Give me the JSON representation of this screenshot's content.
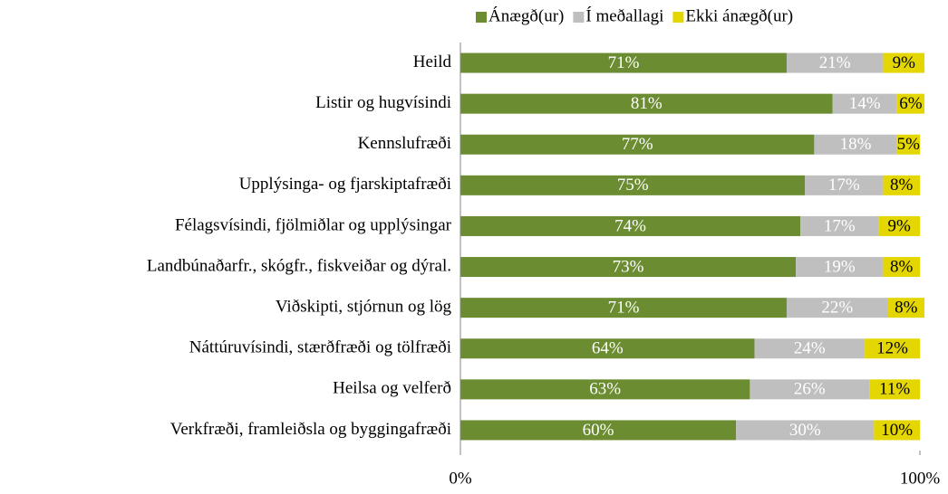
{
  "chart_data": {
    "type": "stacked-bar-horizontal",
    "categories": [
      "Heild",
      "Listir og hugvísindi",
      "Kennslufræði",
      "Upplýsinga- og fjarskiptafræði",
      "Félagsvísindi, fjölmiðlar og upplýsingar",
      "Landbúnaðarfr., skógfr., fiskveiðar og dýral.",
      "Viðskipti, stjórnun og lög",
      "Náttúruvísindi, stærðfræði og tölfræði",
      "Heilsa og velferð",
      "Verkfræði, framleiðsla og byggingafræði"
    ],
    "series": [
      {
        "name": "Ánægð(ur)",
        "color": "#6b8c31",
        "label_color": "#ffffff",
        "values": [
          71,
          81,
          77,
          75,
          74,
          73,
          71,
          64,
          63,
          60
        ],
        "value_labels": [
          "71%",
          "81%",
          "77%",
          "75%",
          "74%",
          "73%",
          "71%",
          "64%",
          "63%",
          "60%"
        ]
      },
      {
        "name": "Í meðallagi",
        "color": "#bfbfbf",
        "label_color": "#ffffff",
        "values": [
          21,
          14,
          18,
          17,
          17,
          19,
          22,
          24,
          26,
          30
        ],
        "value_labels": [
          "21%",
          "14%",
          "18%",
          "17%",
          "17%",
          "19%",
          "22%",
          "24%",
          "26%",
          "30%"
        ]
      },
      {
        "name": "Ekki ánægð(ur)",
        "color": "#e4d600",
        "label_color": "#000000",
        "values": [
          9,
          6,
          5,
          8,
          9,
          8,
          8,
          12,
          11,
          10
        ],
        "value_labels": [
          "9%",
          "6%",
          "5%",
          "8%",
          "9%",
          "8%",
          "8%",
          "12%",
          "11%",
          "10%"
        ]
      }
    ],
    "xlim": [
      0,
      100
    ],
    "xticks": [
      {
        "value": 0,
        "label": "0%"
      },
      {
        "value": 100,
        "label": "100%"
      }
    ],
    "legend": "top"
  }
}
